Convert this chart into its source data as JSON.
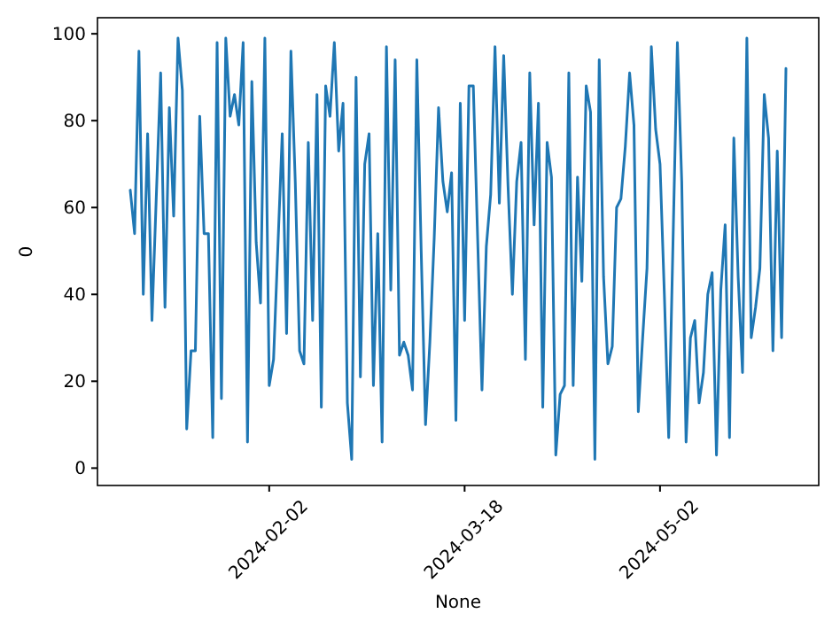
{
  "chart_data": {
    "type": "line",
    "xlabel": "None",
    "ylabel": "0",
    "xlim": [
      "2023-12-24T10:48",
      "2024-06-07T13:12"
    ],
    "xticks": [
      "2024-02-02",
      "2024-03-18",
      "2024-05-02"
    ],
    "ylim": [
      -4,
      103.7
    ],
    "yticks": [
      0,
      20,
      40,
      60,
      80,
      100
    ],
    "grid": false,
    "series": [
      {
        "color": "#1f77b4",
        "x": [
          "2024-01-01",
          "2024-01-02",
          "2024-01-03",
          "2024-01-04",
          "2024-01-05",
          "2024-01-06",
          "2024-01-08",
          "2024-01-09",
          "2024-01-10",
          "2024-01-11",
          "2024-01-12",
          "2024-01-13",
          "2024-01-14",
          "2024-01-15",
          "2024-01-16",
          "2024-01-17",
          "2024-01-18",
          "2024-01-19",
          "2024-01-20",
          "2024-01-21",
          "2024-01-22",
          "2024-01-23",
          "2024-01-24",
          "2024-01-25",
          "2024-01-26",
          "2024-01-27",
          "2024-01-28",
          "2024-01-29",
          "2024-01-30",
          "2024-01-31",
          "2024-02-01",
          "2024-02-02",
          "2024-02-03",
          "2024-02-05",
          "2024-02-06",
          "2024-02-07",
          "2024-02-08",
          "2024-02-09",
          "2024-02-10",
          "2024-02-11",
          "2024-02-12",
          "2024-02-13",
          "2024-02-14",
          "2024-02-15",
          "2024-02-16",
          "2024-02-17",
          "2024-02-18",
          "2024-02-19",
          "2024-02-20",
          "2024-02-21",
          "2024-02-22",
          "2024-02-23",
          "2024-02-24",
          "2024-02-25",
          "2024-02-26",
          "2024-02-27",
          "2024-02-28",
          "2024-02-29",
          "2024-03-01",
          "2024-03-02",
          "2024-03-03",
          "2024-03-04",
          "2024-03-05",
          "2024-03-06",
          "2024-03-07",
          "2024-03-08",
          "2024-03-09",
          "2024-03-10",
          "2024-03-11",
          "2024-03-12",
          "2024-03-13",
          "2024-03-14",
          "2024-03-15",
          "2024-03-16",
          "2024-03-17",
          "2024-03-18",
          "2024-03-19",
          "2024-03-20",
          "2024-03-22",
          "2024-03-23",
          "2024-03-24",
          "2024-03-25",
          "2024-03-26",
          "2024-03-27",
          "2024-03-28",
          "2024-03-29",
          "2024-03-30",
          "2024-03-31",
          "2024-04-01",
          "2024-04-02",
          "2024-04-03",
          "2024-04-04",
          "2024-04-05",
          "2024-04-06",
          "2024-04-07",
          "2024-04-08",
          "2024-04-09",
          "2024-04-10",
          "2024-04-11",
          "2024-04-12",
          "2024-04-13",
          "2024-04-14",
          "2024-04-15",
          "2024-04-16",
          "2024-04-17",
          "2024-04-18",
          "2024-04-19",
          "2024-04-20",
          "2024-04-21",
          "2024-04-22",
          "2024-04-23",
          "2024-04-24",
          "2024-04-25",
          "2024-04-26",
          "2024-04-27",
          "2024-04-28",
          "2024-04-29",
          "2024-04-30",
          "2024-05-01",
          "2024-05-02",
          "2024-05-03",
          "2024-05-04",
          "2024-05-06",
          "2024-05-07",
          "2024-05-08",
          "2024-05-09",
          "2024-05-10",
          "2024-05-11",
          "2024-05-12",
          "2024-05-13",
          "2024-05-14",
          "2024-05-15",
          "2024-05-16",
          "2024-05-17",
          "2024-05-18",
          "2024-05-19",
          "2024-05-20",
          "2024-05-21",
          "2024-05-22",
          "2024-05-23",
          "2024-05-24",
          "2024-05-25",
          "2024-05-26",
          "2024-05-27",
          "2024-05-28",
          "2024-05-29",
          "2024-05-30",
          "2024-05-31"
        ],
        "values": [
          64,
          54,
          96,
          40,
          77,
          34,
          91,
          37,
          83,
          58,
          99,
          87,
          9,
          27,
          27,
          81,
          54,
          54,
          7,
          98,
          16,
          99,
          81,
          86,
          79,
          98,
          6,
          89,
          52,
          38,
          99,
          19,
          25,
          77,
          31,
          96,
          66,
          27,
          24,
          75,
          34,
          86,
          14,
          88,
          81,
          98,
          73,
          84,
          15,
          2,
          90,
          21,
          70,
          77,
          19,
          54,
          6,
          97,
          41,
          94,
          26,
          29,
          26,
          18,
          94,
          50,
          10,
          29,
          53,
          83,
          66,
          59,
          68,
          11,
          84,
          34,
          88,
          88,
          18,
          51,
          63,
          97,
          61,
          95,
          65,
          40,
          66,
          75,
          25,
          91,
          56,
          84,
          14,
          75,
          67,
          3,
          17,
          19,
          91,
          19,
          67,
          43,
          88,
          82,
          2,
          94,
          44,
          24,
          28,
          60,
          62,
          74,
          91,
          79,
          13,
          30,
          46,
          97,
          78,
          70,
          40,
          7,
          98,
          66,
          6,
          30,
          34,
          15,
          22,
          40,
          45,
          3,
          41,
          56,
          7,
          76,
          44,
          22,
          99,
          30,
          37,
          46,
          86,
          76,
          27,
          73,
          30,
          92
        ]
      }
    ]
  }
}
